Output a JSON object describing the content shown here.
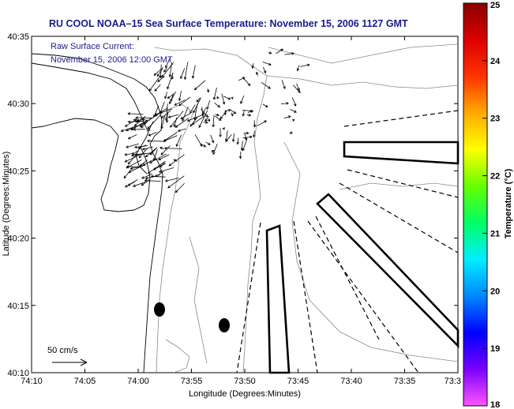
{
  "chart_data": {
    "type": "map",
    "title": "RU COOL  NOAA–15  Sea Surface Temperature:  November 15, 2006 1127 GMT",
    "annotation_line1": "Raw Surface Current:",
    "annotation_line2": "November 15, 2006 12:00 GMT",
    "xlabel": "Longitude (Degrees:Minutes)",
    "ylabel": "Latitude (Degrees:Minutes)",
    "x_ticks": [
      "74:10",
      "74:05",
      "74:00",
      "73:55",
      "73:50",
      "73:45",
      "73:40",
      "73:35",
      "73:3"
    ],
    "y_ticks": [
      "40:35",
      "40:30",
      "40:25",
      "40:20",
      "40:15",
      "40:10"
    ],
    "colorbar": {
      "label": "Temperature (°C)",
      "ticks": [
        "25",
        "24",
        "23",
        "22",
        "21",
        "20",
        "19",
        "18"
      ],
      "range": [
        18,
        25
      ],
      "colors": [
        "#ff55ff",
        "#7a00ff",
        "#0000ff",
        "#0088ff",
        "#00eeff",
        "#00ff66",
        "#66ff00",
        "#ffff00",
        "#ffaa00",
        "#ff3300",
        "#dd0000",
        "#880000"
      ]
    },
    "scale_label": "50 cm/s",
    "vector_regions": [
      {
        "cx": 73.965,
        "cy": 40.445,
        "count": 70,
        "u_mean": -6,
        "v_mean": -3,
        "spread": 0.04
      },
      {
        "cx": 73.93,
        "cy": 40.52,
        "count": 45,
        "u_mean": -4,
        "v_mean": -6,
        "spread": 0.035
      },
      {
        "cx": 73.87,
        "cy": 40.48,
        "count": 40,
        "u_mean": 0,
        "v_mean": -3,
        "spread": 0.04
      },
      {
        "cx": 73.8,
        "cy": 40.51,
        "count": 30,
        "u_mean": 2,
        "v_mean": -1,
        "spread": 0.05
      }
    ]
  }
}
